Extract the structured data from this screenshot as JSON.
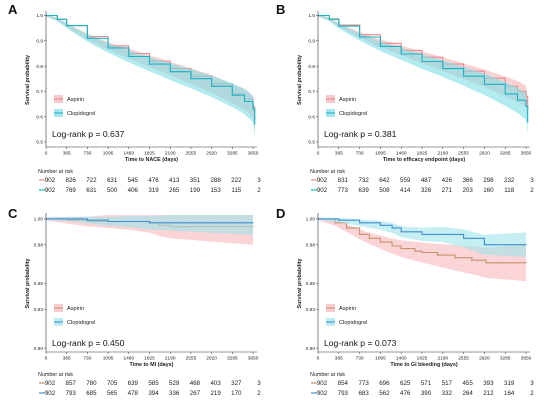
{
  "colors": {
    "aspirin_line": "#e8898c",
    "aspirin_fill": "#f5b2b4",
    "clopi_line": "#18b2c2",
    "clopi_fill": "#7fdde6",
    "aspirin_line_cd": "#c8916b",
    "aspirin_fill_cd": "#f6b8bb",
    "clopi_line_cd": "#3f8fcf",
    "clopi_fill_cd": "#9fe4ea",
    "axis": "#333333"
  },
  "risk_header": "Number at risk",
  "chart_data": [
    {
      "panel": "A",
      "type": "line",
      "xlabel": "Time to NACE (days)",
      "ylabel": "Survival probability",
      "xticks": [
        0,
        365,
        730,
        1095,
        1460,
        1825,
        2190,
        2555,
        2920,
        3285,
        3650
      ],
      "yticks": [
        0.5,
        0.6,
        0.7,
        0.8,
        0.9,
        1.0
      ],
      "ytick_labels": [
        "0.5",
        "0.6",
        "0.7",
        "0.8",
        "0.9",
        "1.0"
      ],
      "xlim": [
        0,
        3720
      ],
      "ylim": [
        0.48,
        1.01
      ],
      "logrank": "Log-rank p = 0.637",
      "series": [
        {
          "name": "Aspirin",
          "x": [
            0,
            200,
            365,
            730,
            1095,
            1460,
            1825,
            2190,
            2555,
            2920,
            3285,
            3500,
            3650,
            3680
          ],
          "values": [
            1.0,
            0.985,
            0.96,
            0.917,
            0.88,
            0.85,
            0.82,
            0.79,
            0.76,
            0.73,
            0.69,
            0.67,
            0.64,
            0.59
          ]
        },
        {
          "name": "Clopidogrel",
          "x": [
            0,
            200,
            365,
            730,
            1095,
            1460,
            1825,
            2190,
            2555,
            2920,
            3285,
            3500,
            3650,
            3680
          ],
          "values": [
            1.0,
            0.985,
            0.96,
            0.91,
            0.872,
            0.838,
            0.808,
            0.778,
            0.75,
            0.72,
            0.685,
            0.66,
            0.63,
            0.57
          ]
        }
      ],
      "risk": {
        "Aspirin": [
          "902",
          "826",
          "722",
          "631",
          "545",
          "476",
          "413",
          "351",
          "288",
          "222",
          "3"
        ],
        "Clopidogrel": [
          "902",
          "769",
          "631",
          "500",
          "406",
          "319",
          "265",
          "199",
          "153",
          "115",
          "2"
        ]
      }
    },
    {
      "panel": "B",
      "type": "line",
      "xlabel": "Time to efficacy endpoint (days)",
      "ylabel": "Survival probability",
      "xticks": [
        0,
        365,
        730,
        1095,
        1460,
        1825,
        2190,
        2555,
        2920,
        3285,
        3650
      ],
      "yticks": [
        0.5,
        0.6,
        0.7,
        0.8,
        0.9,
        1.0
      ],
      "ytick_labels": [
        "0.5",
        "0.6",
        "0.7",
        "0.8",
        "0.9",
        "1.0"
      ],
      "xlim": [
        0,
        3720
      ],
      "ylim": [
        0.48,
        1.01
      ],
      "logrank": "Log-rank p = 0.381",
      "series": [
        {
          "name": "Aspirin",
          "x": [
            0,
            200,
            365,
            730,
            1095,
            1460,
            1825,
            2190,
            2555,
            2920,
            3285,
            3500,
            3650,
            3680
          ],
          "values": [
            1.0,
            0.987,
            0.962,
            0.924,
            0.89,
            0.862,
            0.835,
            0.808,
            0.78,
            0.752,
            0.72,
            0.7,
            0.68,
            0.63
          ]
        },
        {
          "name": "Clopidogrel",
          "x": [
            0,
            200,
            365,
            730,
            1095,
            1460,
            1825,
            2190,
            2555,
            2920,
            3285,
            3500,
            3650,
            3680
          ],
          "values": [
            1.0,
            0.985,
            0.958,
            0.915,
            0.878,
            0.848,
            0.818,
            0.79,
            0.76,
            0.728,
            0.69,
            0.665,
            0.64,
            0.58
          ]
        }
      ],
      "risk": {
        "Aspirin": [
          "902",
          "831",
          "732",
          "642",
          "559",
          "487",
          "426",
          "366",
          "298",
          "232",
          "3"
        ],
        "Clopidogrel": [
          "902",
          "773",
          "639",
          "508",
          "414",
          "326",
          "271",
          "203",
          "160",
          "118",
          "2"
        ]
      }
    },
    {
      "panel": "C",
      "type": "line",
      "xlabel": "Time to MI (days)",
      "ylabel": "Survival probability",
      "xticks": [
        0,
        365,
        730,
        1095,
        1460,
        1825,
        2190,
        2555,
        2920,
        3285,
        3650
      ],
      "yticks": [
        0.9,
        0.93,
        0.95,
        0.98,
        1.0
      ],
      "ytick_labels": [
        "0.90",
        "0.93",
        "0.95",
        "0.98",
        "1.00"
      ],
      "xlim": [
        0,
        3720
      ],
      "ylim": [
        0.897,
        1.003
      ],
      "logrank": "Log-rank p = 0.450",
      "series": [
        {
          "name": "Aspirin",
          "x": [
            0,
            365,
            730,
            1095,
            1460,
            1825,
            2000,
            2190,
            2555,
            2920,
            3285,
            3650
          ],
          "values": [
            1.0,
            0.999,
            0.998,
            0.998,
            0.998,
            0.997,
            0.995,
            0.994,
            0.994,
            0.994,
            0.994,
            0.994
          ]
        },
        {
          "name": "Clopidogrel",
          "x": [
            0,
            365,
            730,
            1095,
            1460,
            1825,
            2190,
            2555,
            2920,
            3285,
            3650
          ],
          "values": [
            1.0,
            1.0,
            0.999,
            0.998,
            0.998,
            0.997,
            0.997,
            0.997,
            0.997,
            0.997,
            0.997
          ]
        }
      ],
      "risk": {
        "Aspirin": [
          "902",
          "857",
          "780",
          "705",
          "639",
          "585",
          "529",
          "468",
          "403",
          "327",
          "3"
        ],
        "Clopidogrel": [
          "902",
          "793",
          "685",
          "565",
          "478",
          "394",
          "336",
          "267",
          "219",
          "170",
          "2"
        ]
      }
    },
    {
      "panel": "D",
      "type": "line",
      "xlabel": "Time to GI bleeding (days)",
      "ylabel": "Survival probability",
      "xticks": [
        0,
        365,
        730,
        1095,
        1460,
        1825,
        2190,
        2555,
        2920,
        3285,
        3650
      ],
      "yticks": [
        0.9,
        0.93,
        0.95,
        0.98,
        1.0
      ],
      "ytick_labels": [
        "0.90",
        "0.93",
        "0.95",
        "0.98",
        "1.00"
      ],
      "xlim": [
        0,
        3720
      ],
      "ylim": [
        0.897,
        1.003
      ],
      "logrank": "Log-rank p = 0.073",
      "series": [
        {
          "name": "Aspirin",
          "x": [
            0,
            300,
            500,
            730,
            900,
            1095,
            1300,
            1460,
            1700,
            1825,
            2100,
            2400,
            2700,
            2950,
            3200,
            3650
          ],
          "values": [
            1.0,
            0.997,
            0.993,
            0.988,
            0.985,
            0.982,
            0.979,
            0.977,
            0.975,
            0.974,
            0.972,
            0.97,
            0.968,
            0.966,
            0.966,
            0.966
          ]
        },
        {
          "name": "Clopidogrel",
          "x": [
            0,
            365,
            730,
            1095,
            1300,
            1460,
            1825,
            2190,
            2555,
            2920,
            3285,
            3650
          ],
          "values": [
            1.0,
            0.999,
            0.997,
            0.995,
            0.993,
            0.99,
            0.988,
            0.988,
            0.985,
            0.98,
            0.98,
            0.98
          ]
        }
      ],
      "risk": {
        "Aspirin": [
          "902",
          "854",
          "773",
          "696",
          "625",
          "571",
          "517",
          "455",
          "393",
          "319",
          "3"
        ],
        "Clopidogrel": [
          "902",
          "793",
          "683",
          "562",
          "476",
          "390",
          "332",
          "264",
          "212",
          "164",
          "2"
        ]
      }
    }
  ]
}
